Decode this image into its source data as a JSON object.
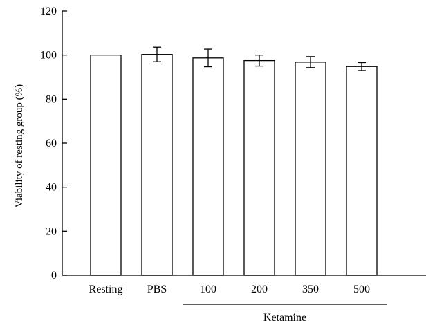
{
  "chart_data": {
    "type": "bar",
    "categories": [
      "Resting",
      "PBS",
      "100",
      "200",
      "350",
      "500"
    ],
    "values": [
      100,
      100.3,
      98.7,
      97.5,
      96.8,
      94.8
    ],
    "errors": [
      0,
      3.3,
      4.0,
      2.5,
      2.5,
      1.8
    ],
    "title": "",
    "xlabel": "",
    "ylabel": "Viability of resting group (%)",
    "ylim": [
      0,
      120
    ],
    "yticks": [
      0,
      20,
      40,
      60,
      80,
      100,
      120
    ],
    "group_label": {
      "text": "Ketamine",
      "categories": [
        "100",
        "200",
        "350",
        "500"
      ]
    },
    "grid": false,
    "colors": {
      "bar_fill": "#ffffff",
      "bar_stroke": "#000000",
      "axis": "#000000"
    }
  }
}
